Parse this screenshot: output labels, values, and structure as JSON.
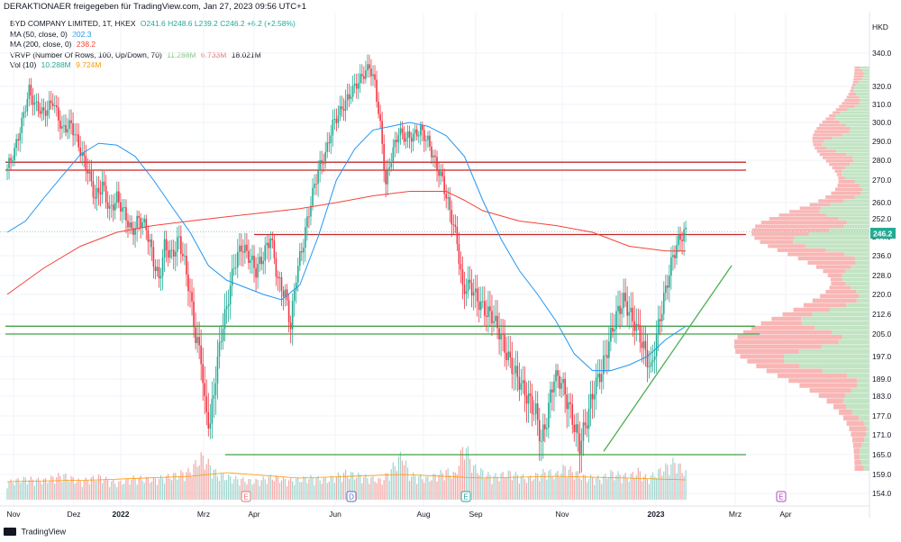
{
  "header": {
    "attribution": "DERAKTIONAER freigegeben für TradingView.com, Jan 27, 2023 09:56 UTC+1"
  },
  "legend": {
    "symbol": "BYD COMPANY LIMITED, 1T, HKEX",
    "ohlc": "O241.6 H248.6 L239.2 C246.2 +6.2 (+2.58%)",
    "ma50_label": "MA (50, close, 0)",
    "ma50_value": "202.3",
    "ma200_label": "MA (200, close, 0)",
    "ma200_value": "238.2",
    "vrvp_label": "VRVP (Number Of Rows, 100, Up/Down, 70)",
    "vrvp_up": "11.288M",
    "vrvp_down": "6.733M",
    "vrvp_total": "18.021M",
    "vol_label": "Vol (10)",
    "vol_value": "10.288M",
    "vol_ma": "9.724M"
  },
  "footer": {
    "brand": "TradingView"
  },
  "colors": {
    "up": "#26a69a",
    "down": "#ef5350",
    "candle_up": "#22ab94",
    "candle_down": "#f23645",
    "ma50": "#2196f3",
    "ma200": "#f44336",
    "hline_red": "#c62828",
    "hline_green": "#43a047",
    "trendline": "#4caf50",
    "vol_ma": "#ff9800",
    "price_badge": "#22ab94"
  },
  "chart_data": {
    "type": "candlestick",
    "currency": "HKD",
    "last_price": "246.2",
    "y_ticks": [
      "340.0",
      "320.0",
      "310.0",
      "300.0",
      "290.0",
      "280.0",
      "270.0",
      "260.0",
      "252.0",
      "244.0",
      "236.0",
      "228.0",
      "220.0",
      "212.6",
      "205.0",
      "197.0",
      "189.0",
      "183.0",
      "177.0",
      "171.0",
      "165.0",
      "159.0",
      "154.0"
    ],
    "x_ticks": [
      "Nov",
      "Dez",
      "2022",
      "Mrz",
      "Apr",
      "Jun",
      "Aug",
      "Sep",
      "Nov",
      "2023",
      "Mrz",
      "Apr"
    ],
    "event_markers": [
      {
        "label": "E",
        "date": "Mrz 2022"
      },
      {
        "label": "D",
        "date": "Jun 2022"
      },
      {
        "label": "E",
        "date": "Aug 2022"
      },
      {
        "label": "E",
        "date": "Apr 2023"
      }
    ],
    "horizontal_levels": [
      {
        "value": 279,
        "color": "red"
      },
      {
        "value": 275,
        "color": "red"
      },
      {
        "value": 245,
        "color": "red"
      },
      {
        "value": 208,
        "color": "green"
      },
      {
        "value": 205,
        "color": "green"
      },
      {
        "value": 165,
        "color": "green"
      }
    ],
    "trendline": {
      "from": {
        "date": "2022-11-28",
        "price": 166
      },
      "to": {
        "date": "2023-02-05",
        "price": 232
      }
    },
    "price_path": [
      [
        0,
        276
      ],
      [
        4,
        285
      ],
      [
        8,
        300
      ],
      [
        12,
        318
      ],
      [
        15,
        310
      ],
      [
        20,
        305
      ],
      [
        25,
        312
      ],
      [
        30,
        296
      ],
      [
        35,
        299
      ],
      [
        40,
        285
      ],
      [
        44,
        275
      ],
      [
        48,
        262
      ],
      [
        52,
        268
      ],
      [
        56,
        256
      ],
      [
        60,
        262
      ],
      [
        64,
        255
      ],
      [
        68,
        246
      ],
      [
        72,
        252
      ],
      [
        76,
        248
      ],
      [
        80,
        234
      ],
      [
        83,
        226
      ],
      [
        86,
        240
      ],
      [
        90,
        236
      ],
      [
        94,
        243
      ],
      [
        97,
        233
      ],
      [
        100,
        220
      ],
      [
        103,
        204
      ],
      [
        106,
        197
      ],
      [
        108,
        180
      ],
      [
        111,
        174
      ],
      [
        114,
        190
      ],
      [
        117,
        205
      ],
      [
        120,
        215
      ],
      [
        124,
        232
      ],
      [
        128,
        240
      ],
      [
        132,
        236
      ],
      [
        136,
        230
      ],
      [
        140,
        236
      ],
      [
        144,
        244
      ],
      [
        148,
        226
      ],
      [
        152,
        220
      ],
      [
        155,
        208
      ],
      [
        158,
        228
      ],
      [
        162,
        242
      ],
      [
        166,
        260
      ],
      [
        170,
        275
      ],
      [
        174,
        283
      ],
      [
        178,
        299
      ],
      [
        182,
        306
      ],
      [
        186,
        313
      ],
      [
        190,
        320
      ],
      [
        194,
        326
      ],
      [
        198,
        332
      ],
      [
        201,
        322
      ],
      [
        204,
        298
      ],
      [
        207,
        268
      ],
      [
        210,
        282
      ],
      [
        214,
        295
      ],
      [
        218,
        292
      ],
      [
        222,
        293
      ],
      [
        226,
        296
      ],
      [
        230,
        290
      ],
      [
        234,
        279
      ],
      [
        238,
        270
      ],
      [
        242,
        256
      ],
      [
        246,
        242
      ],
      [
        249,
        222
      ],
      [
        253,
        224
      ],
      [
        257,
        218
      ],
      [
        261,
        214
      ],
      [
        265,
        212
      ],
      [
        269,
        206
      ],
      [
        273,
        198
      ],
      [
        277,
        192
      ],
      [
        281,
        187
      ],
      [
        285,
        182
      ],
      [
        289,
        178
      ],
      [
        292,
        169
      ],
      [
        295,
        176
      ],
      [
        299,
        190
      ],
      [
        303,
        188
      ],
      [
        306,
        182
      ],
      [
        310,
        174
      ],
      [
        313,
        168
      ],
      [
        317,
        176
      ],
      [
        321,
        186
      ],
      [
        325,
        192
      ],
      [
        329,
        202
      ],
      [
        333,
        212
      ],
      [
        337,
        218
      ],
      [
        341,
        212
      ],
      [
        345,
        206
      ],
      [
        349,
        198
      ],
      [
        352,
        192
      ],
      [
        356,
        208
      ],
      [
        360,
        222
      ],
      [
        364,
        236
      ],
      [
        368,
        244
      ],
      [
        371,
        246
      ]
    ],
    "ma50_path": [
      [
        0,
        246
      ],
      [
        10,
        251
      ],
      [
        20,
        262
      ],
      [
        30,
        272
      ],
      [
        40,
        283
      ],
      [
        50,
        289
      ],
      [
        60,
        288
      ],
      [
        70,
        282
      ],
      [
        80,
        270
      ],
      [
        90,
        258
      ],
      [
        100,
        246
      ],
      [
        110,
        232
      ],
      [
        120,
        226
      ],
      [
        130,
        223
      ],
      [
        140,
        220
      ],
      [
        150,
        218
      ],
      [
        160,
        224
      ],
      [
        170,
        244
      ],
      [
        180,
        270
      ],
      [
        190,
        286
      ],
      [
        200,
        296
      ],
      [
        210,
        298
      ],
      [
        220,
        300
      ],
      [
        230,
        298
      ],
      [
        240,
        293
      ],
      [
        250,
        282
      ],
      [
        260,
        261
      ],
      [
        270,
        243
      ],
      [
        280,
        230
      ],
      [
        290,
        220
      ],
      [
        300,
        210
      ],
      [
        310,
        198
      ],
      [
        320,
        192
      ],
      [
        330,
        192
      ],
      [
        340,
        194
      ],
      [
        350,
        197
      ],
      [
        360,
        203
      ],
      [
        371,
        208
      ]
    ],
    "ma200_path": [
      [
        0,
        220
      ],
      [
        20,
        231
      ],
      [
        40,
        240
      ],
      [
        60,
        246
      ],
      [
        80,
        249
      ],
      [
        100,
        251
      ],
      [
        120,
        253
      ],
      [
        140,
        255
      ],
      [
        160,
        257
      ],
      [
        180,
        260
      ],
      [
        200,
        263
      ],
      [
        220,
        265
      ],
      [
        240,
        265
      ],
      [
        250,
        261
      ],
      [
        260,
        256
      ],
      [
        280,
        251
      ],
      [
        300,
        249
      ],
      [
        320,
        246
      ],
      [
        340,
        240
      ],
      [
        360,
        238
      ],
      [
        371,
        238
      ]
    ],
    "volume_path": [
      [
        0,
        18
      ],
      [
        10,
        22
      ],
      [
        20,
        20
      ],
      [
        30,
        26
      ],
      [
        40,
        19
      ],
      [
        50,
        24
      ],
      [
        60,
        17
      ],
      [
        70,
        23
      ],
      [
        80,
        21
      ],
      [
        90,
        25
      ],
      [
        100,
        30
      ],
      [
        106,
        45
      ],
      [
        110,
        38
      ],
      [
        115,
        26
      ],
      [
        125,
        22
      ],
      [
        135,
        19
      ],
      [
        145,
        24
      ],
      [
        155,
        20
      ],
      [
        165,
        23
      ],
      [
        175,
        21
      ],
      [
        185,
        28
      ],
      [
        195,
        24
      ],
      [
        205,
        20
      ],
      [
        210,
        32
      ],
      [
        216,
        48
      ],
      [
        220,
        26
      ],
      [
        230,
        22
      ],
      [
        240,
        30
      ],
      [
        245,
        26
      ],
      [
        250,
        60
      ],
      [
        255,
        34
      ],
      [
        265,
        24
      ],
      [
        275,
        28
      ],
      [
        285,
        22
      ],
      [
        295,
        30
      ],
      [
        300,
        26
      ],
      [
        305,
        34
      ],
      [
        315,
        24
      ],
      [
        325,
        22
      ],
      [
        330,
        28
      ],
      [
        340,
        24
      ],
      [
        345,
        30
      ],
      [
        350,
        22
      ],
      [
        360,
        34
      ],
      [
        365,
        40
      ],
      [
        371,
        28
      ]
    ],
    "volume_ma_path": [
      [
        0,
        14
      ],
      [
        50,
        16
      ],
      [
        100,
        20
      ],
      [
        120,
        24
      ],
      [
        160,
        18
      ],
      [
        216,
        22
      ],
      [
        260,
        18
      ],
      [
        300,
        20
      ],
      [
        340,
        18
      ],
      [
        371,
        16
      ]
    ],
    "volume_profile": {
      "price_min": 160,
      "price_max": 332,
      "rows": 100,
      "note_shape": "bimodal with peaks near 245 and 200"
    }
  }
}
